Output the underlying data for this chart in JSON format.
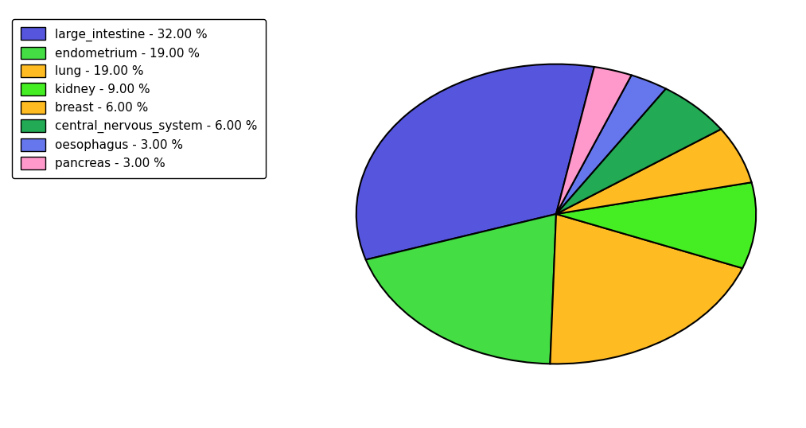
{
  "labels": [
    "large_intestine",
    "endometrium",
    "lung",
    "kidney",
    "breast",
    "central_nervous_system",
    "oesophagus",
    "pancreas"
  ],
  "values": [
    32.0,
    19.0,
    19.0,
    9.0,
    6.0,
    6.0,
    3.0,
    3.0
  ],
  "colors": [
    "#5555dd",
    "#44dd44",
    "#ffbb22",
    "#44ee22",
    "#ffbb22",
    "#22aa55",
    "#6677ee",
    "#ff99cc"
  ],
  "legend_labels": [
    "large_intestine - 32.00 %",
    "endometrium - 19.00 %",
    "lung - 19.00 %",
    "kidney - 9.00 %",
    "breast - 6.00 %",
    "central_nervous_system - 6.00 %",
    "oesophagus - 3.00 %",
    "pancreas - 3.00 %"
  ],
  "legend_colors": [
    "#5555dd",
    "#44dd44",
    "#ffbb22",
    "#44ee22",
    "#ffbb22",
    "#22aa55",
    "#6677ee",
    "#ff99cc"
  ],
  "background_color": "#ffffff",
  "startangle": 79,
  "figsize": [
    10.13,
    5.38
  ],
  "dpi": 100
}
